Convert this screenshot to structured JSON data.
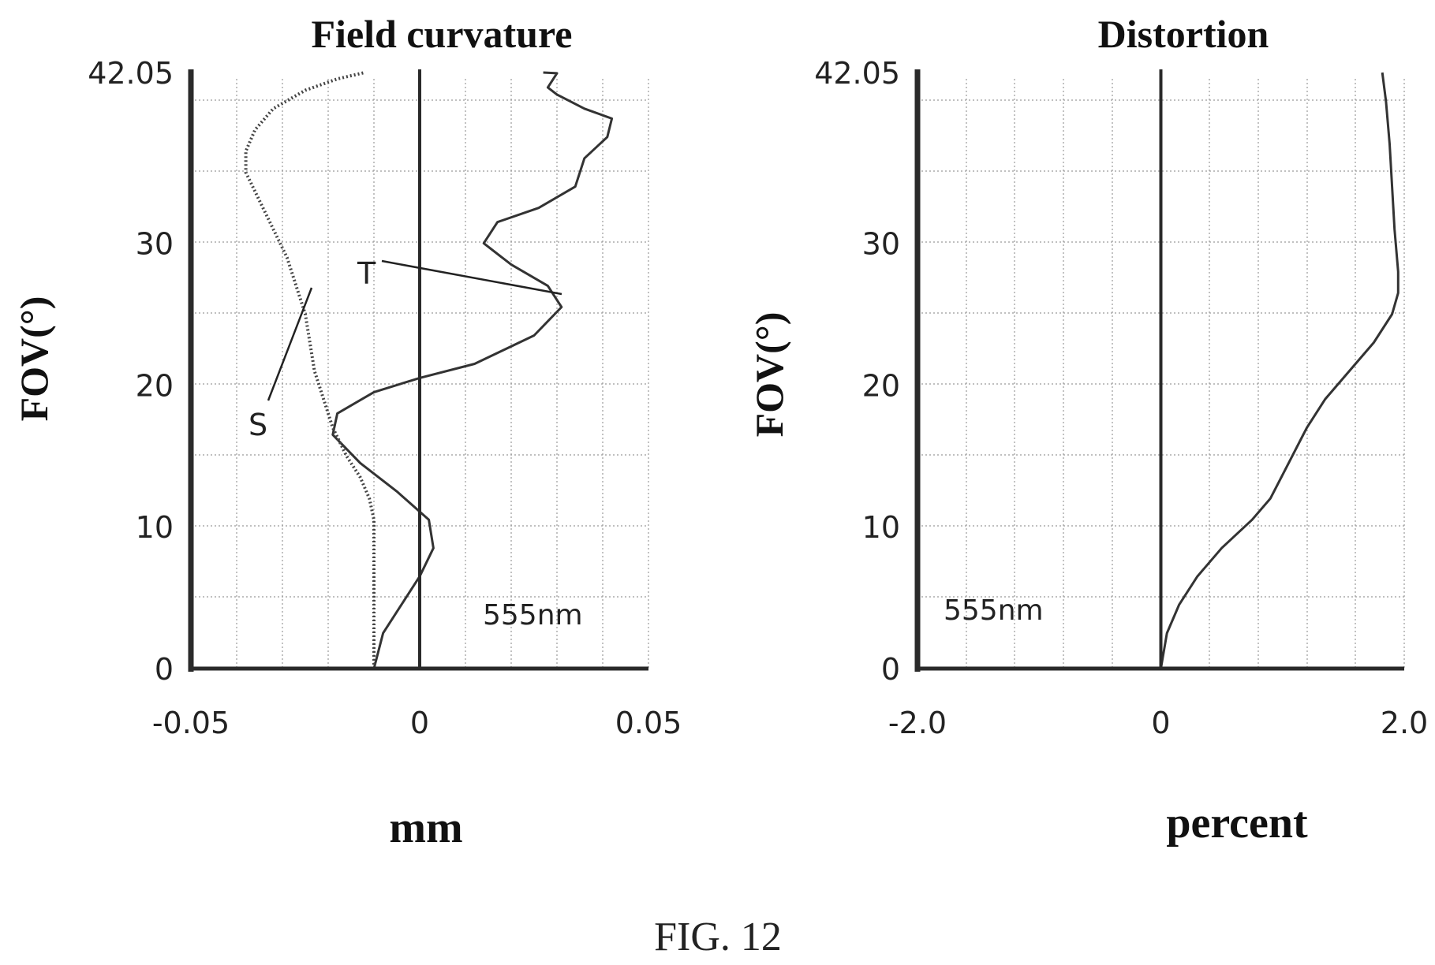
{
  "figure_caption": "FIG. 12",
  "chart_data": [
    {
      "type": "line",
      "title": "Field curvature",
      "xlabel": "mm",
      "ylabel": "FOV(°)",
      "xlim": [
        -0.05,
        0.05
      ],
      "ylim": [
        0,
        42.05
      ],
      "x_tick_labels": [
        "-0.05",
        "0",
        "0.05"
      ],
      "y_tick_labels": [
        "0",
        "10",
        "20",
        "30",
        "42.05"
      ],
      "grid": true,
      "wavelength_note": "555nm",
      "series": [
        {
          "name": "T",
          "style": "solid",
          "points": [
            [
              -0.01,
              0
            ],
            [
              -0.008,
              2.5
            ],
            [
              -0.004,
              4.5
            ],
            [
              0.0,
              6.5
            ],
            [
              0.003,
              8.5
            ],
            [
              0.002,
              10.5
            ],
            [
              -0.005,
              12.5
            ],
            [
              -0.013,
              14.5
            ],
            [
              -0.019,
              16.5
            ],
            [
              -0.018,
              18.0
            ],
            [
              -0.01,
              19.5
            ],
            [
              0.0,
              20.5
            ],
            [
              0.012,
              21.5
            ],
            [
              0.025,
              23.5
            ],
            [
              0.031,
              25.5
            ],
            [
              0.028,
              27.0
            ],
            [
              0.02,
              28.5
            ],
            [
              0.014,
              30.0
            ],
            [
              0.017,
              31.5
            ],
            [
              0.026,
              32.5
            ],
            [
              0.034,
              34.0
            ],
            [
              0.036,
              36.0
            ],
            [
              0.041,
              37.5
            ],
            [
              0.042,
              38.8
            ],
            [
              0.036,
              39.5
            ],
            [
              0.03,
              40.5
            ],
            [
              0.028,
              41.0
            ],
            [
              0.03,
              42.0
            ],
            [
              0.027,
              42.05
            ]
          ]
        },
        {
          "name": "S",
          "style": "dotted",
          "points": [
            [
              -0.01,
              0
            ],
            [
              -0.01,
              3.0
            ],
            [
              -0.01,
              6.0
            ],
            [
              -0.01,
              9.0
            ],
            [
              -0.01,
              10.5
            ],
            [
              -0.011,
              12.0
            ],
            [
              -0.013,
              13.5
            ],
            [
              -0.016,
              15.0
            ],
            [
              -0.019,
              17.0
            ],
            [
              -0.021,
              19.0
            ],
            [
              -0.023,
              21.0
            ],
            [
              -0.024,
              23.0
            ],
            [
              -0.025,
              25.0
            ],
            [
              -0.027,
              27.0
            ],
            [
              -0.029,
              29.0
            ],
            [
              -0.032,
              31.0
            ],
            [
              -0.035,
              33.0
            ],
            [
              -0.038,
              35.0
            ],
            [
              -0.038,
              36.5
            ],
            [
              -0.036,
              38.0
            ],
            [
              -0.032,
              39.5
            ],
            [
              -0.025,
              40.8
            ],
            [
              -0.018,
              41.6
            ],
            [
              -0.012,
              42.05
            ]
          ]
        }
      ],
      "annotations": [
        {
          "text": "T",
          "x": -0.011,
          "y": 28.2,
          "points_to": [
            0.031,
            26.3
          ]
        },
        {
          "text": "S",
          "x": -0.035,
          "y": 17.0,
          "points_to": [
            -0.024,
            27.0
          ]
        }
      ]
    },
    {
      "type": "line",
      "title": "Distortion",
      "xlabel": "percent",
      "ylabel": "FOV(°)",
      "xlim": [
        -2.0,
        2.0
      ],
      "ylim": [
        0,
        42.05
      ],
      "x_tick_labels": [
        "-2.0",
        "0",
        "2.0"
      ],
      "y_tick_labels": [
        "0",
        "10",
        "20",
        "30",
        "42.05"
      ],
      "grid": true,
      "wavelength_note": "555nm",
      "series": [
        {
          "name": "distortion",
          "style": "solid",
          "points": [
            [
              0.0,
              0
            ],
            [
              0.05,
              2.5
            ],
            [
              0.15,
              4.5
            ],
            [
              0.3,
              6.5
            ],
            [
              0.5,
              8.5
            ],
            [
              0.75,
              10.5
            ],
            [
              0.9,
              12.0
            ],
            [
              1.05,
              14.5
            ],
            [
              1.2,
              17.0
            ],
            [
              1.35,
              19.0
            ],
            [
              1.55,
              21.0
            ],
            [
              1.75,
              23.0
            ],
            [
              1.9,
              25.0
            ],
            [
              1.95,
              26.5
            ],
            [
              1.95,
              28.0
            ],
            [
              1.92,
              31.0
            ],
            [
              1.9,
              34.0
            ],
            [
              1.88,
              37.0
            ],
            [
              1.85,
              40.0
            ],
            [
              1.82,
              42.05
            ]
          ]
        }
      ]
    }
  ]
}
